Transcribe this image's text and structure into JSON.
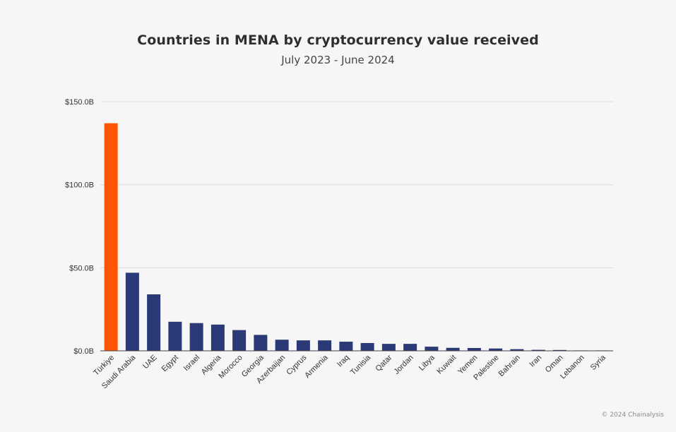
{
  "chart_data": {
    "type": "bar",
    "title": "Countries in MENA by cryptocurrency value received",
    "subtitle": "July 2023 - June 2024",
    "xlabel": "",
    "ylabel": "",
    "ylim": [
      0,
      150
    ],
    "y_ticks": [
      "$0.0B",
      "$50.0B",
      "$100.0B",
      "$150.0B"
    ],
    "y_tick_values": [
      0,
      50,
      100,
      150
    ],
    "grid": true,
    "categories": [
      "Türkiye",
      "Saudi Arabia",
      "UAE",
      "Egypt",
      "Israel",
      "Algeria",
      "Morocco",
      "Georgia",
      "Azerbaijan",
      "Cyprus",
      "Armenia",
      "Iraq",
      "Tunisia",
      "Qatar",
      "Jordan",
      "Libya",
      "Kuwait",
      "Yemen",
      "Palestine",
      "Bahrain",
      "Iran",
      "Oman",
      "Lebanon",
      "Syria"
    ],
    "values": [
      137,
      47,
      34,
      17.5,
      16.7,
      15.8,
      12.5,
      9.6,
      6.7,
      6.3,
      6.3,
      5.5,
      4.7,
      4.2,
      4.2,
      2.5,
      1.8,
      1.7,
      1.4,
      1.0,
      0.6,
      0.5,
      0.2,
      0.1
    ],
    "colors": {
      "highlight": "#ff5500",
      "bar": "#2b3a76",
      "grid": "#dddddd",
      "axis": "#444444"
    },
    "highlight_index": 0
  },
  "footer": {
    "copyright": "© 2024 Chainalysis"
  }
}
